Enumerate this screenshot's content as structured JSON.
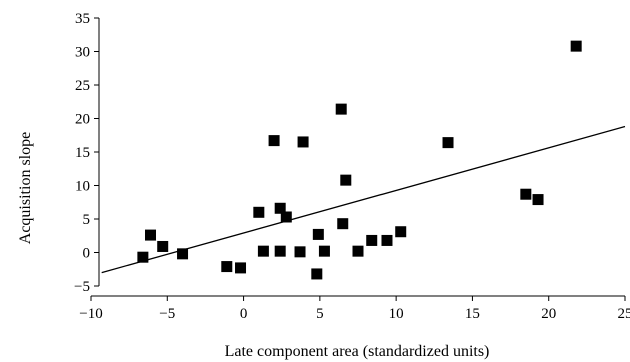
{
  "chart_data": {
    "type": "scatter",
    "title": "",
    "xlabel": "Late component area (standardized units)",
    "ylabel": "Acquisition slope",
    "xlim": [
      -10,
      25
    ],
    "ylim": [
      -5,
      35
    ],
    "x_ticks": [
      "−10",
      "−5",
      "0",
      "5",
      "10",
      "15",
      "20",
      "25"
    ],
    "y_ticks": [
      "−5",
      "0",
      "5",
      "10",
      "15",
      "20",
      "25",
      "30",
      "35"
    ],
    "grid": false,
    "marker": "square",
    "marker_color": "#000000",
    "series": [
      {
        "points": [
          {
            "x": -6.6,
            "y": -0.7
          },
          {
            "x": -6.1,
            "y": 2.6
          },
          {
            "x": -5.3,
            "y": 0.9
          },
          {
            "x": -4.0,
            "y": -0.2
          },
          {
            "x": -1.1,
            "y": -2.1
          },
          {
            "x": -0.2,
            "y": -2.3
          },
          {
            "x": 1.0,
            "y": 6.0
          },
          {
            "x": 1.3,
            "y": 0.2
          },
          {
            "x": 2.0,
            "y": 16.7
          },
          {
            "x": 2.4,
            "y": 0.2
          },
          {
            "x": 2.4,
            "y": 6.6
          },
          {
            "x": 2.8,
            "y": 5.3
          },
          {
            "x": 3.7,
            "y": 0.1
          },
          {
            "x": 3.9,
            "y": 16.5
          },
          {
            "x": 4.8,
            "y": -3.2
          },
          {
            "x": 4.9,
            "y": 2.7
          },
          {
            "x": 5.3,
            "y": 0.2
          },
          {
            "x": 6.4,
            "y": 21.4
          },
          {
            "x": 6.5,
            "y": 4.3
          },
          {
            "x": 6.7,
            "y": 10.8
          },
          {
            "x": 7.5,
            "y": 0.2
          },
          {
            "x": 8.4,
            "y": 1.8
          },
          {
            "x": 9.4,
            "y": 1.8
          },
          {
            "x": 10.3,
            "y": 3.1
          },
          {
            "x": 13.4,
            "y": 16.4
          },
          {
            "x": 18.5,
            "y": 8.7
          },
          {
            "x": 19.3,
            "y": 7.9
          },
          {
            "x": 21.8,
            "y": 30.8
          }
        ]
      }
    ],
    "fit_line": {
      "x": [
        -9.3,
        25
      ],
      "y": [
        -3.0,
        18.8
      ]
    }
  }
}
